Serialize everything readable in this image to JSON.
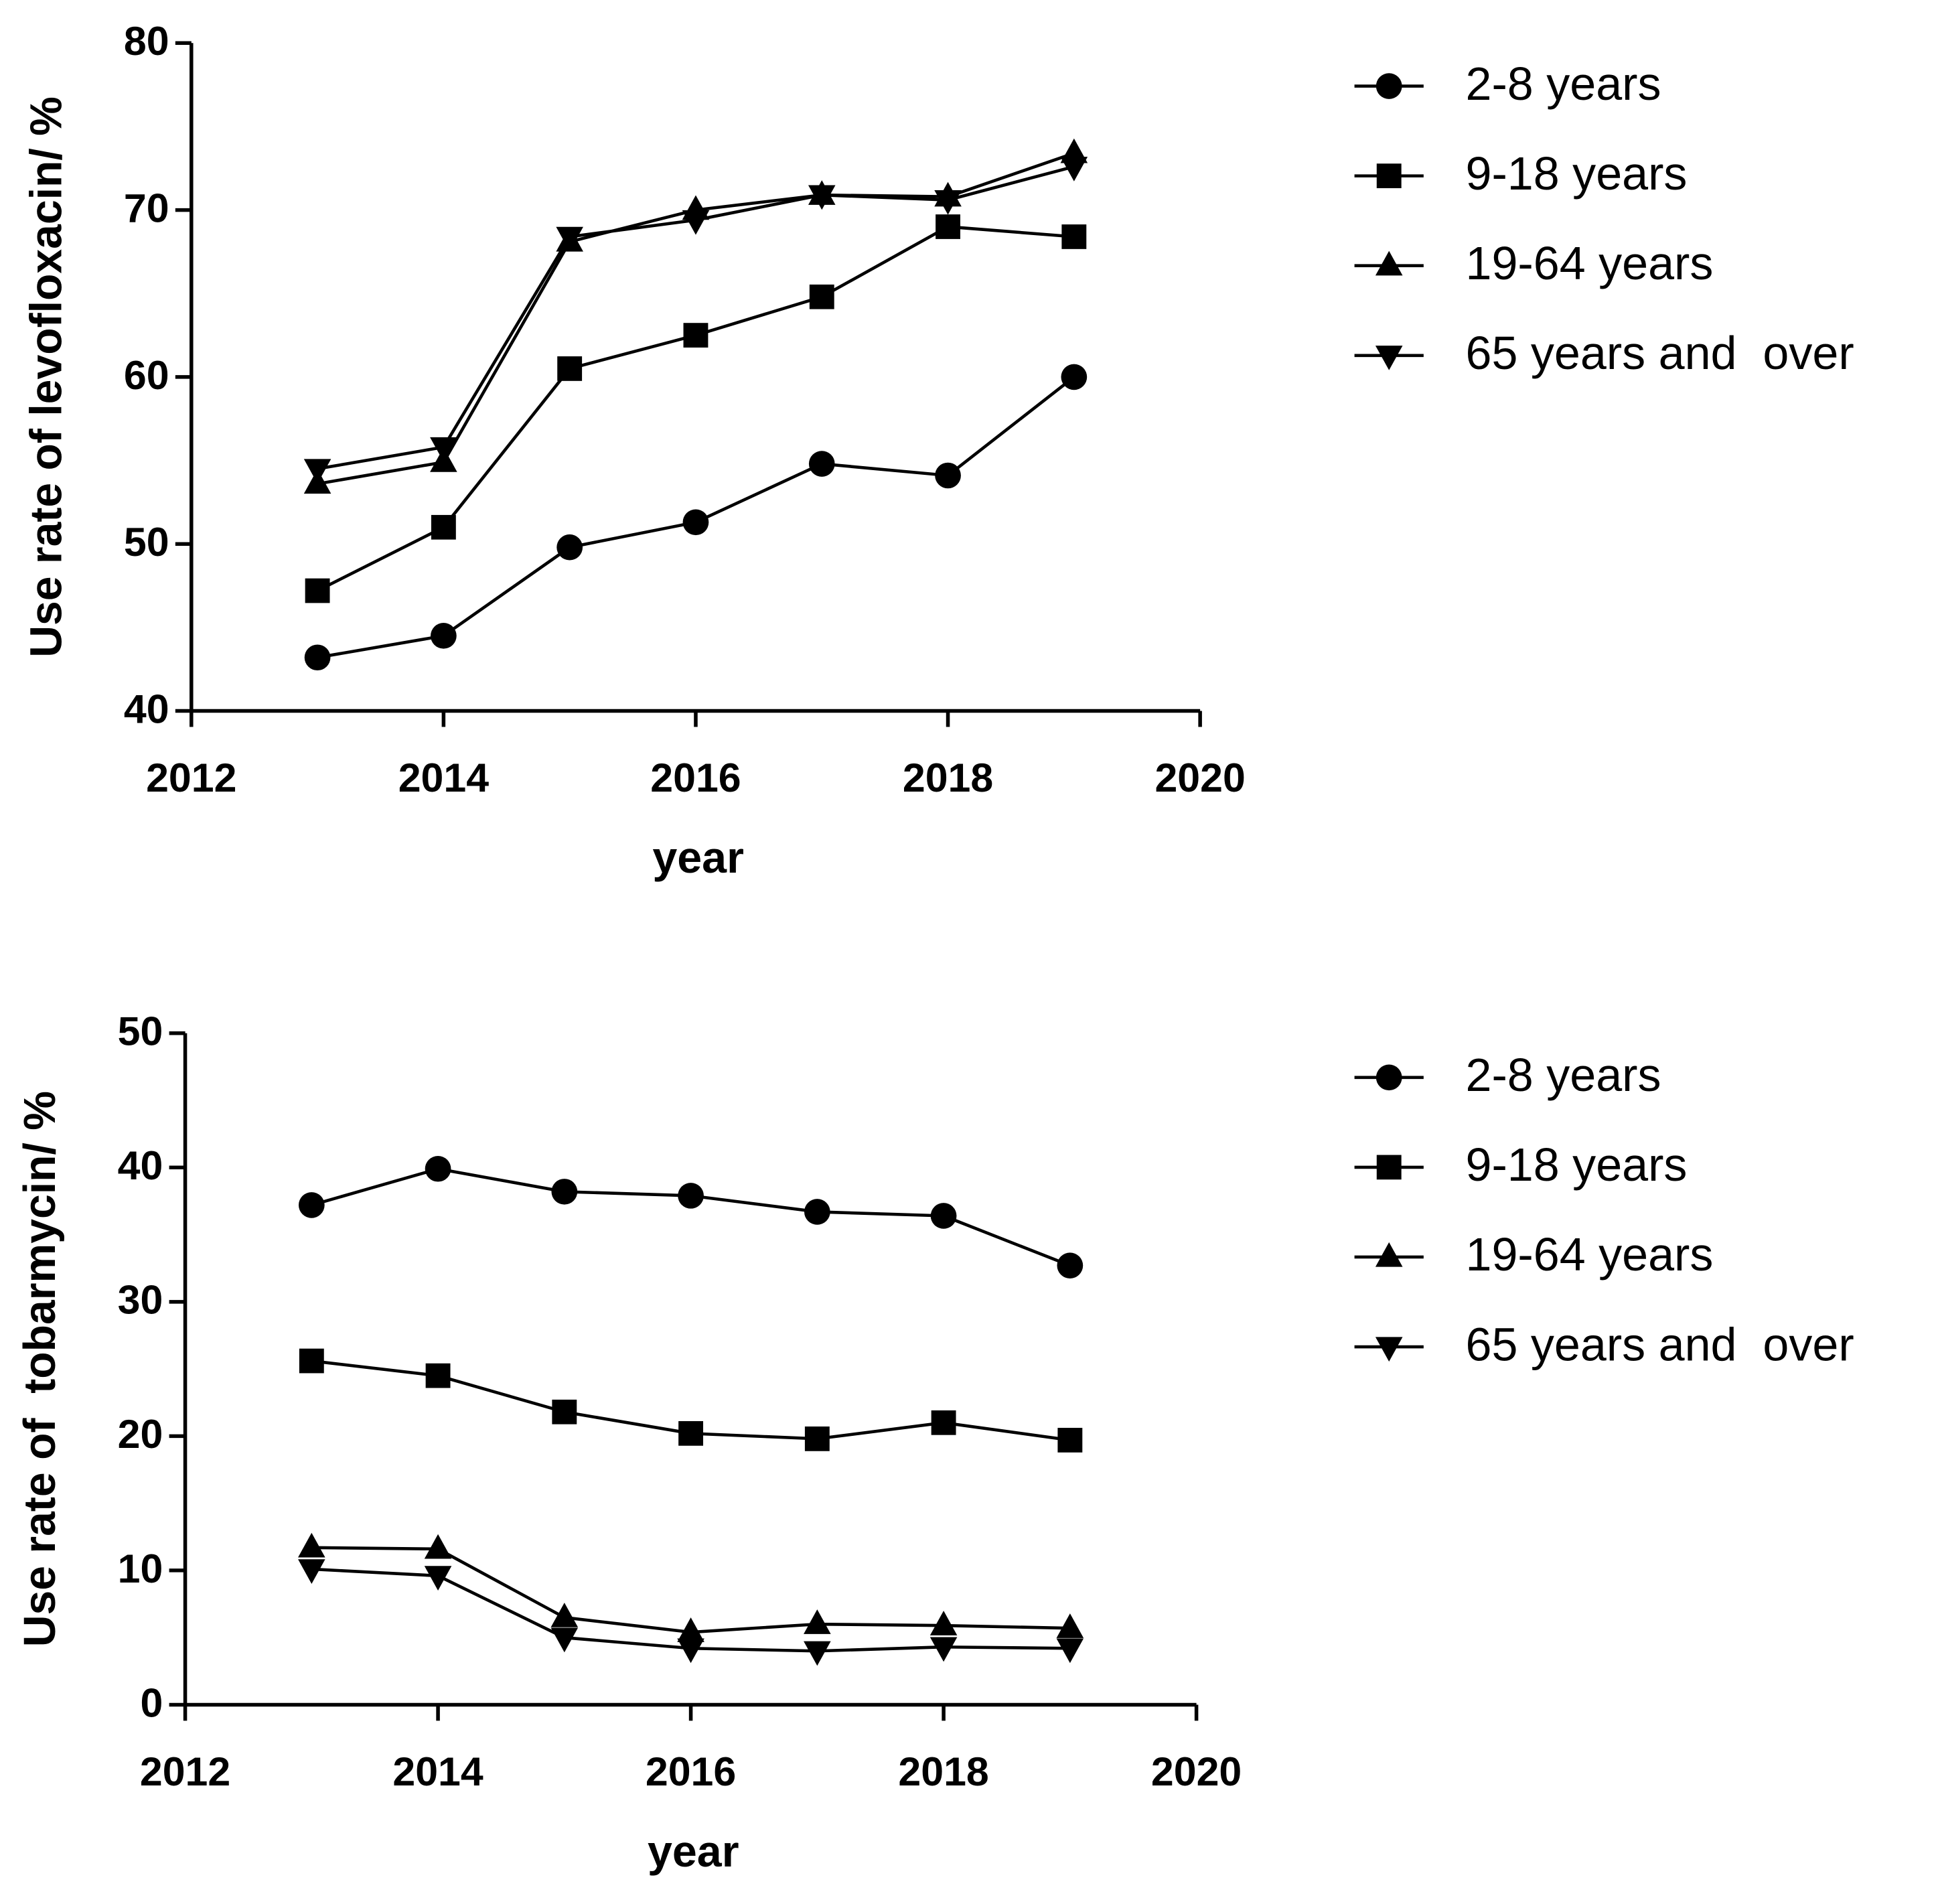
{
  "chart_data": [
    {
      "type": "line",
      "y_label": "Use rate of levofloxacin/ %",
      "x_label": "year",
      "x": [
        2013,
        2014,
        2015,
        2016,
        2017,
        2018,
        2019
      ],
      "xlim": [
        2012,
        2020
      ],
      "xticks": [
        2012,
        2014,
        2016,
        2018,
        2020
      ],
      "ylim": [
        40,
        80
      ],
      "yticks": [
        40,
        50,
        60,
        70,
        80
      ],
      "legend": "right",
      "series": [
        {
          "name": "2-8 years",
          "color": "#000000",
          "marker": "circle",
          "values": [
            43.2,
            44.5,
            49.8,
            51.3,
            54.8,
            54.1,
            60.0
          ]
        },
        {
          "name": "9-18 years",
          "color": "#000000",
          "marker": "square",
          "values": [
            47.2,
            51.0,
            60.5,
            62.5,
            64.8,
            69.0,
            68.4
          ]
        },
        {
          "name": "19-64 years",
          "color": "#000000",
          "marker": "triangle-up",
          "values": [
            53.6,
            54.9,
            68.1,
            70.0,
            70.9,
            70.8,
            73.4
          ]
        },
        {
          "name": "65 years and  over",
          "color": "#000000",
          "marker": "triangle-down",
          "values": [
            54.5,
            55.8,
            68.4,
            69.4,
            70.9,
            70.6,
            72.6
          ]
        }
      ]
    },
    {
      "type": "line",
      "y_label": "Use rate of  tobarmycin/ %",
      "x_label": "year",
      "x": [
        2013,
        2014,
        2015,
        2016,
        2017,
        2018,
        2019
      ],
      "xlim": [
        2012,
        2020
      ],
      "xticks": [
        2012,
        2014,
        2016,
        2018,
        2020
      ],
      "ylim": [
        0,
        50
      ],
      "yticks": [
        0,
        10,
        20,
        30,
        40,
        50
      ],
      "legend": "right",
      "series": [
        {
          "name": "2-8 years",
          "color": "#000000",
          "marker": "circle",
          "values": [
            37.2,
            39.9,
            38.2,
            37.9,
            36.7,
            36.4,
            32.7
          ]
        },
        {
          "name": "9-18 years",
          "color": "#000000",
          "marker": "square",
          "values": [
            25.6,
            24.5,
            21.8,
            20.2,
            19.8,
            21.0,
            19.7
          ]
        },
        {
          "name": "19-64 years",
          "color": "#000000",
          "marker": "triangle-up",
          "values": [
            11.7,
            11.6,
            6.5,
            5.4,
            6.0,
            5.9,
            5.7
          ]
        },
        {
          "name": "65 years and  over",
          "color": "#000000",
          "marker": "triangle-down",
          "values": [
            10.1,
            9.6,
            5.0,
            4.2,
            4.0,
            4.3,
            4.2
          ]
        }
      ]
    }
  ]
}
